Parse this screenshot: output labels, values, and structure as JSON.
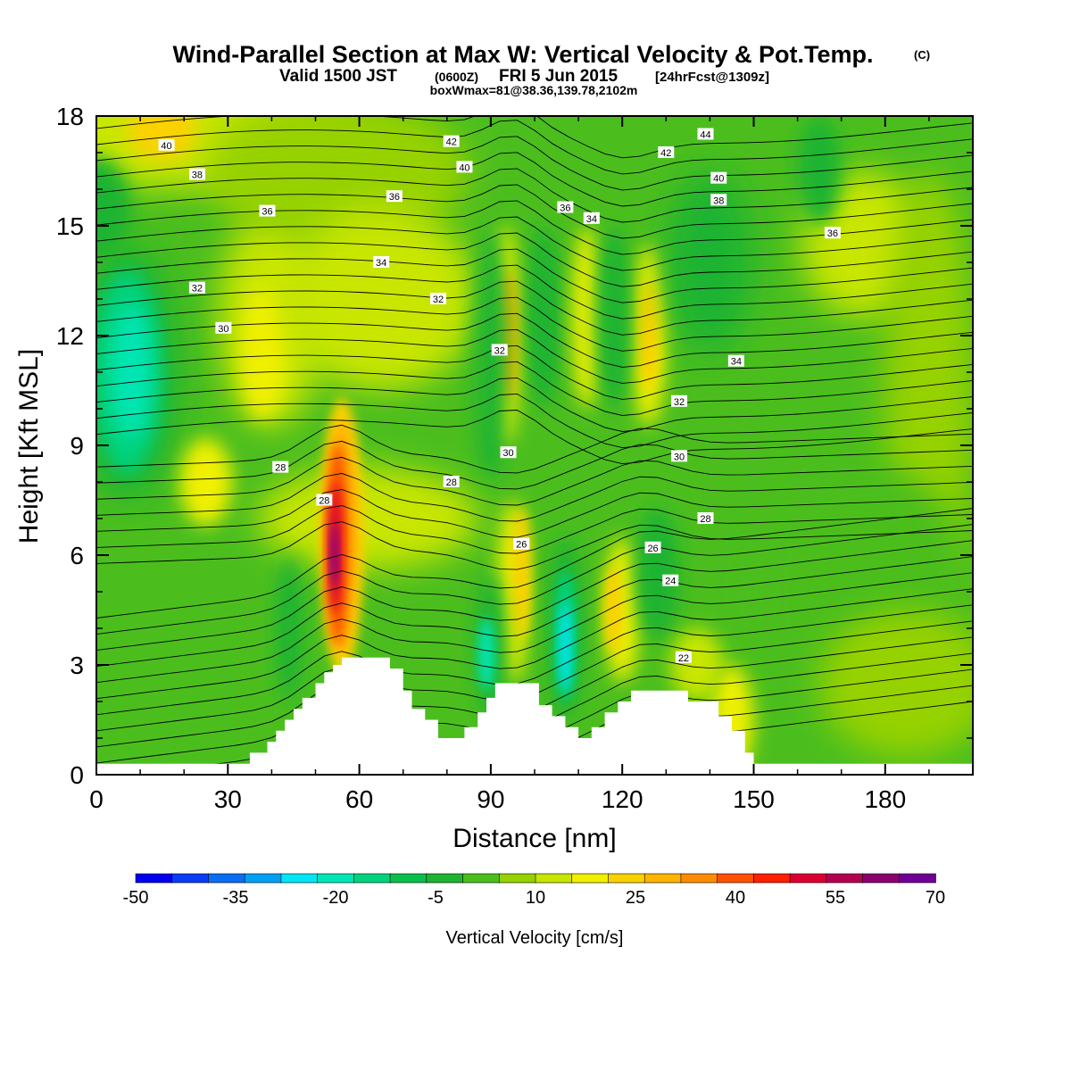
{
  "title": {
    "main": "Wind-Parallel Section at Max W: Vertical Velocity & Pot.Temp.",
    "copyright": "(C)",
    "valid_prefix": "Valid 1500 JST",
    "valid_utc": "(0600Z)",
    "valid_date": "FRI 5 Jun 2015",
    "forecast": "[24hrFcst@1309z]",
    "box_info": "boxWmax=81@38.36,139.78,2102m"
  },
  "chart_data": {
    "type": "heatmap",
    "xlabel": "Distance [nm]",
    "ylabel": "Height [Kft MSL]",
    "xlim": [
      0,
      200
    ],
    "ylim": [
      0,
      18
    ],
    "x_ticks": [
      "0",
      "30",
      "60",
      "90",
      "120",
      "150",
      "180"
    ],
    "y_ticks": [
      "0",
      "3",
      "6",
      "9",
      "12",
      "15",
      "18"
    ],
    "colorbar": {
      "label": "Vertical Velocity [cm/s]",
      "tick_labels": [
        "-50",
        "-35",
        "-20",
        "-5",
        "10",
        "25",
        "40",
        "55",
        "70"
      ],
      "colors": [
        "#0000f0",
        "#0a3cf5",
        "#0a6ef5",
        "#00a0f5",
        "#00e6f5",
        "#00e6b4",
        "#00d27d",
        "#0abe4b",
        "#1eb432",
        "#4bbe1e",
        "#96d200",
        "#c8e600",
        "#f0f000",
        "#fad200",
        "#ffb400",
        "#ff8c00",
        "#ff5000",
        "#ff1e00",
        "#dc0032",
        "#b40050",
        "#8c006e",
        "#6e0096"
      ]
    },
    "potential_temperature_contours": [
      {
        "label": "40",
        "x": 16,
        "y": 17.2
      },
      {
        "label": "38",
        "x": 23,
        "y": 16.4
      },
      {
        "label": "36",
        "x": 39,
        "y": 15.4
      },
      {
        "label": "32",
        "x": 23,
        "y": 13.3
      },
      {
        "label": "30",
        "x": 29,
        "y": 12.2
      },
      {
        "label": "28",
        "x": 42,
        "y": 8.4
      },
      {
        "label": "28",
        "x": 52,
        "y": 7.5
      },
      {
        "label": "42",
        "x": 81,
        "y": 17.3
      },
      {
        "label": "40",
        "x": 84,
        "y": 16.6
      },
      {
        "label": "36",
        "x": 68,
        "y": 15.8
      },
      {
        "label": "34",
        "x": 65,
        "y": 14.0
      },
      {
        "label": "32",
        "x": 78,
        "y": 13.0
      },
      {
        "label": "28",
        "x": 81,
        "y": 8.0
      },
      {
        "label": "30",
        "x": 94,
        "y": 8.8
      },
      {
        "label": "32",
        "x": 92,
        "y": 11.6
      },
      {
        "label": "36",
        "x": 107,
        "y": 15.5
      },
      {
        "label": "34",
        "x": 113,
        "y": 15.2
      },
      {
        "label": "26",
        "x": 97,
        "y": 6.3
      },
      {
        "label": "44",
        "x": 139,
        "y": 17.5
      },
      {
        "label": "42",
        "x": 130,
        "y": 17.0
      },
      {
        "label": "40",
        "x": 142,
        "y": 16.3
      },
      {
        "label": "38",
        "x": 142,
        "y": 15.7
      },
      {
        "label": "36",
        "x": 168,
        "y": 14.8
      },
      {
        "label": "34",
        "x": 146,
        "y": 11.3
      },
      {
        "label": "32",
        "x": 133,
        "y": 10.2
      },
      {
        "label": "30",
        "x": 133,
        "y": 8.7
      },
      {
        "label": "28",
        "x": 139,
        "y": 7.0
      },
      {
        "label": "26",
        "x": 127,
        "y": 6.2
      },
      {
        "label": "24",
        "x": 131,
        "y": 5.3
      },
      {
        "label": "22",
        "x": 134,
        "y": 3.2
      }
    ]
  }
}
